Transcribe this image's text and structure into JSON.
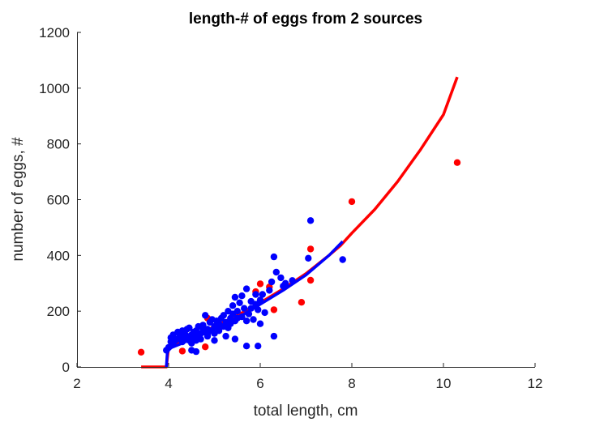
{
  "chart_data": {
    "type": "scatter",
    "title": "length-# of eggs from 2 sources",
    "xlabel": "total length, cm",
    "ylabel": "number of eggs, #",
    "xlim": [
      2,
      12
    ],
    "ylim": [
      0,
      1200
    ],
    "xticks": [
      2,
      4,
      6,
      8,
      10,
      12
    ],
    "yticks": [
      0,
      200,
      400,
      600,
      800,
      1000,
      1200
    ],
    "grid": false,
    "legend": "none",
    "colors": {
      "red": "#ff0000",
      "blue": "#0000ff",
      "axis": "#262626"
    },
    "series": [
      {
        "kind": "points",
        "color": "red",
        "x": [
          3.4,
          4.3,
          4.8,
          4.85,
          5.9,
          6.0,
          6.2,
          6.3,
          6.9,
          7.1,
          7.1,
          8.0,
          10.3
        ],
        "y": [
          53,
          57,
          72,
          175,
          270,
          298,
          287,
          205,
          232,
          423,
          311,
          593,
          733
        ]
      },
      {
        "kind": "points",
        "color": "blue",
        "x": [
          3.95,
          4.0,
          4.05,
          4.05,
          4.1,
          4.1,
          4.15,
          4.2,
          4.2,
          4.25,
          4.3,
          4.3,
          4.35,
          4.35,
          4.4,
          4.4,
          4.45,
          4.45,
          4.5,
          4.5,
          4.55,
          4.55,
          4.6,
          4.6,
          4.65,
          4.65,
          4.7,
          4.7,
          4.75,
          4.75,
          4.8,
          4.8,
          4.85,
          4.85,
          4.9,
          4.9,
          4.95,
          5.0,
          5.0,
          5.05,
          5.1,
          5.1,
          5.15,
          5.2,
          5.2,
          5.25,
          5.3,
          5.3,
          5.35,
          5.35,
          5.4,
          5.4,
          5.45,
          5.45,
          5.5,
          5.5,
          5.55,
          5.6,
          5.6,
          5.65,
          5.7,
          5.7,
          5.75,
          5.8,
          5.8,
          5.85,
          5.9,
          5.9,
          5.95,
          6.0,
          6.0,
          6.05,
          6.1,
          6.2,
          6.25,
          6.3,
          6.35,
          6.45,
          6.5,
          6.55,
          6.7,
          7.05,
          7.1,
          7.8,
          4.5,
          4.6,
          4.85,
          5.0,
          5.25,
          5.45,
          5.7,
          5.95,
          6.3
        ],
        "y": [
          60,
          70,
          90,
          105,
          80,
          115,
          95,
          100,
          125,
          110,
          90,
          130,
          100,
          120,
          110,
          135,
          95,
          140,
          115,
          85,
          125,
          105,
          130,
          95,
          115,
          145,
          120,
          100,
          150,
          130,
          125,
          185,
          135,
          110,
          160,
          130,
          170,
          145,
          120,
          165,
          130,
          155,
          175,
          145,
          185,
          160,
          140,
          200,
          175,
          155,
          220,
          190,
          165,
          250,
          200,
          175,
          230,
          255,
          180,
          210,
          280,
          165,
          190,
          235,
          210,
          170,
          260,
          225,
          205,
          240,
          155,
          260,
          195,
          275,
          305,
          395,
          340,
          320,
          290,
          300,
          310,
          390,
          525,
          385,
          60,
          55,
          115,
          95,
          110,
          100,
          75,
          75,
          110
        ]
      },
      {
        "kind": "curve",
        "color": "red",
        "x": [
          3.4,
          3.95,
          4.0,
          4.5,
          5.0,
          5.5,
          6.0,
          6.5,
          7.0,
          7.5,
          7.75,
          8.0,
          8.5,
          9.0,
          9.5,
          10.0,
          10.3
        ],
        "y": [
          0,
          0,
          70,
          105,
          145,
          185,
          230,
          280,
          335,
          400,
          435,
          480,
          565,
          665,
          780,
          905,
          1040
        ]
      },
      {
        "kind": "curve",
        "color": "blue",
        "x": [
          3.95,
          3.97,
          4.0,
          4.05,
          4.1,
          4.3,
          4.5,
          5.0,
          5.5,
          6.0,
          6.5,
          7.0,
          7.5,
          7.8
        ],
        "y": [
          0,
          50,
          60,
          68,
          72,
          85,
          100,
          135,
          175,
          225,
          275,
          330,
          400,
          450
        ]
      }
    ]
  }
}
